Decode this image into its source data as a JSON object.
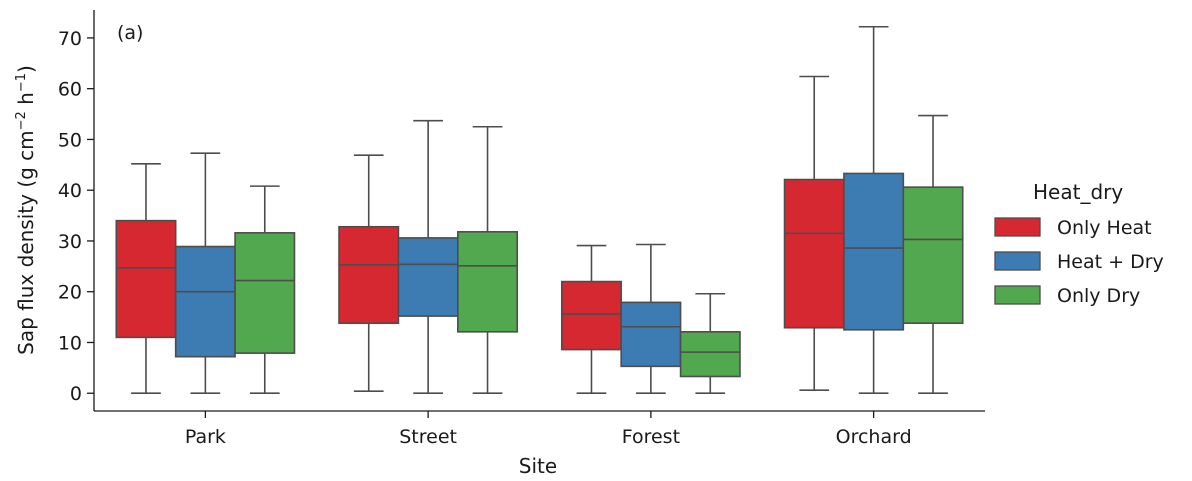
{
  "chart_data": {
    "type": "boxplot",
    "panel_label": "(a)",
    "xlabel": "Site",
    "ylabel": "Sap flux density (g cm",
    "ylabel_sup1": "−2",
    "ylabel_mid": " h",
    "ylabel_sup2": "−1",
    "ylabel_end": ")",
    "ylim": [
      -3.5,
      75.5
    ],
    "yticks": [
      0,
      10,
      20,
      30,
      40,
      50,
      60,
      70
    ],
    "categories": [
      "Park",
      "Street",
      "Forest",
      "Orchard"
    ],
    "legend": {
      "title": "Heat_dry",
      "placement": "right"
    },
    "series": [
      {
        "name": "Only Heat",
        "color": "#d62830",
        "boxes": [
          {
            "whislo": 0,
            "q1": 11,
            "med": 24.7,
            "q3": 34,
            "whishi": 45.2
          },
          {
            "whislo": 0.4,
            "q1": 13.8,
            "med": 25.3,
            "q3": 32.8,
            "whishi": 46.9
          },
          {
            "whislo": 0,
            "q1": 8.6,
            "med": 15.6,
            "q3": 22,
            "whishi": 29.1
          },
          {
            "whislo": 0.6,
            "q1": 12.9,
            "med": 31.5,
            "q3": 42.1,
            "whishi": 62.4
          }
        ]
      },
      {
        "name": "Heat + Dry",
        "color": "#3d7bb3",
        "boxes": [
          {
            "whislo": 0,
            "q1": 7.2,
            "med": 20,
            "q3": 28.9,
            "whishi": 47.3
          },
          {
            "whislo": 0,
            "q1": 15.2,
            "med": 25.4,
            "q3": 30.6,
            "whishi": 53.7
          },
          {
            "whislo": 0,
            "q1": 5.3,
            "med": 13.1,
            "q3": 17.9,
            "whishi": 29.3
          },
          {
            "whislo": 0,
            "q1": 12.5,
            "med": 28.6,
            "q3": 43.3,
            "whishi": 72.2
          }
        ]
      },
      {
        "name": "Only Dry",
        "color": "#52a84f",
        "boxes": [
          {
            "whislo": 0,
            "q1": 7.9,
            "med": 22.2,
            "q3": 31.6,
            "whishi": 40.8
          },
          {
            "whislo": 0,
            "q1": 12.1,
            "med": 25.1,
            "q3": 31.8,
            "whishi": 52.5
          },
          {
            "whislo": 0,
            "q1": 3.3,
            "med": 8.1,
            "q3": 12.1,
            "whishi": 19.6
          },
          {
            "whislo": 0,
            "q1": 13.8,
            "med": 30.3,
            "q3": 40.6,
            "whishi": 54.7
          }
        ]
      }
    ]
  }
}
